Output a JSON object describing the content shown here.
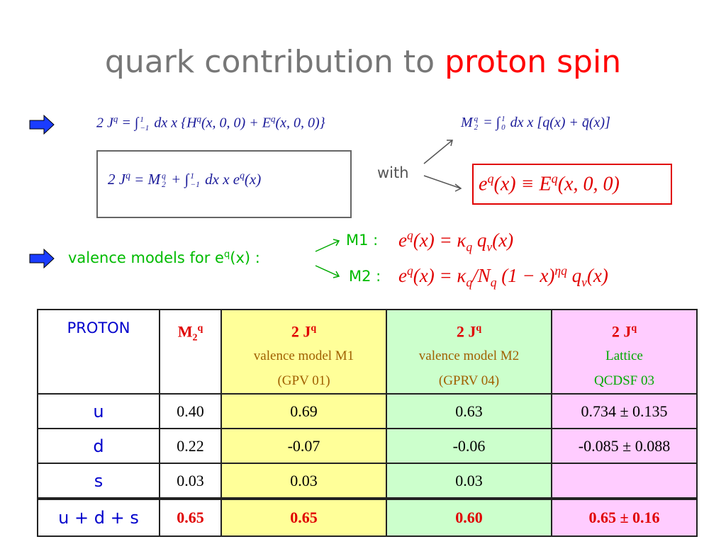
{
  "title": {
    "part1": "quark contribution to",
    "part2": "proton spin"
  },
  "formulas": {
    "jq_integral": [
      "2 J",
      {
        "sup": "q"
      },
      " = ∫",
      {
        "sub": "−1",
        "sup": "1"
      },
      " dx x {H",
      {
        "sup": "q"
      },
      "(x, 0, 0) + E",
      {
        "sup": "q"
      },
      "(x, 0, 0)}"
    ],
    "jq_m2": [
      "2 J",
      {
        "sup": "q"
      },
      " = M",
      {
        "sub": "2",
        "sup": "q"
      },
      " + ∫",
      {
        "sub": "−1",
        "sup": "1"
      },
      " dx x e",
      {
        "sup": "q"
      },
      "(x)"
    ],
    "m2_def": [
      "M",
      {
        "sub": "2",
        "sup": "q"
      },
      " = ∫",
      {
        "sub": "0",
        "sup": "1"
      },
      " dx x [q(x) + q̄(x)]"
    ],
    "eq_def": [
      "e",
      {
        "sup": "q"
      },
      "(x) ≡ E",
      {
        "sup": "q"
      },
      "(x, 0, 0)"
    ],
    "m1": [
      "e",
      {
        "sup": "q"
      },
      "(x) = κ",
      {
        "sub": "q"
      },
      " q",
      {
        "sub": "v"
      },
      "(x)"
    ],
    "m2": [
      "e",
      {
        "sup": "q"
      },
      "(x) = κ",
      {
        "sub": "q"
      },
      "/N",
      {
        "sub": "q"
      },
      " (1 − x)",
      {
        "sup": "ηq"
      },
      " q",
      {
        "sub": "v"
      },
      "(x)"
    ]
  },
  "with_label": "with",
  "valence_label": {
    "text": "valence models for e",
    "sup": "q",
    "tail": "(x) :"
  },
  "model_labels": [
    "M1 :",
    "M2 :"
  ],
  "table": {
    "header": [
      "PROTON",
      {
        "main": "M",
        "sub": "2",
        "sup": "q"
      },
      {
        "main": "2 J",
        "sup": "q",
        "lines": [
          "valence model M1",
          "(GPV 01)"
        ]
      },
      {
        "main": "2 J",
        "sup": "q",
        "lines": [
          "valence model M2",
          "(GPRV 04)"
        ]
      },
      {
        "main": "2 J",
        "sup": "q",
        "lines": [
          "Lattice",
          "QCDSF 03"
        ]
      }
    ],
    "rows": [
      [
        "u",
        "0.40",
        "0.69",
        "0.63",
        "0.734 ± 0.135"
      ],
      [
        "d",
        "0.22",
        "-0.07",
        "-0.06",
        "-0.085 ± 0.088"
      ],
      [
        "s",
        "0.03",
        "0.03",
        "0.03",
        null
      ],
      [
        "u + d + s",
        "0.65",
        "0.65",
        "0.60",
        "0.65 ± 0.16"
      ]
    ]
  }
}
